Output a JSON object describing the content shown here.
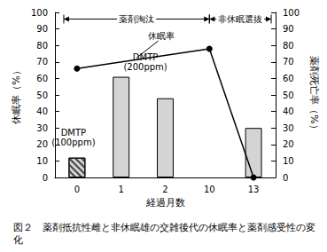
{
  "chart_data": {
    "type": "bar",
    "title": "図２　薬剤抵抗性雌と非休眠雄の交雑後代の休眠率と薬剤感受性の変化",
    "x_label": "経過月数",
    "y_label": "休眠率（%）",
    "y2_label": "薬剤死亡率（%）",
    "categories": [
      "0",
      "1",
      "2",
      "10",
      "13"
    ],
    "series": [
      {
        "name": "薬剤死亡率",
        "type": "bar",
        "axis": "y2",
        "color": "#d4d4d4",
        "values": [
          12,
          61,
          48,
          null,
          30
        ]
      },
      {
        "name": "休眠率",
        "type": "line",
        "axis": "y",
        "color": "#000000",
        "marker": "circle",
        "line_style": "solid",
        "values": [
          66,
          null,
          null,
          78,
          0
        ]
      }
    ],
    "ylim": [
      0,
      100
    ],
    "yticks": [
      0,
      10,
      20,
      30,
      40,
      50,
      60,
      70,
      80,
      90,
      100
    ],
    "y2lim": [
      0,
      100
    ],
    "y2ticks": [
      0,
      10,
      20,
      30,
      40,
      50,
      60,
      70,
      80,
      90,
      100
    ],
    "grid": false,
    "annotations": [
      {
        "text": "薬剤淘汰"
      },
      {
        "text": "非休眠選抜"
      },
      {
        "text": "休眠率"
      },
      {
        "text": "DMTP\n(100ppm)"
      },
      {
        "text": "DMTP\n(200ppm)"
      }
    ]
  }
}
